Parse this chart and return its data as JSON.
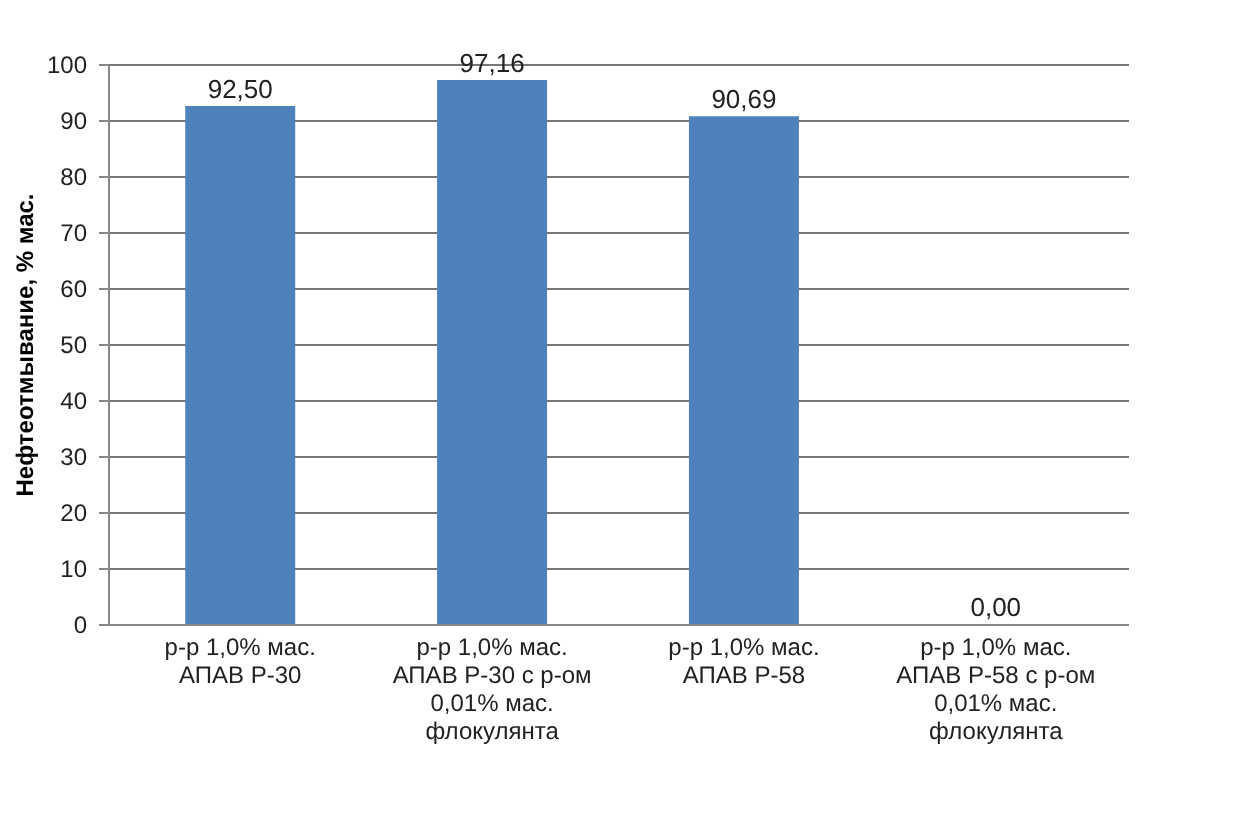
{
  "chart_data": {
    "type": "bar",
    "ylabel": "Нефтеотмывание, % мас.",
    "categories": [
      "р-р 1,0% мас. АПАВ Р-30",
      "р-р 1,0% мас. АПАВ Р-30 с р-ом 0,01% мас. флокулянта",
      "р-р 1,0% мас. АПАВ Р-58",
      "р-р 1,0% мас. АПАВ Р-58 с р-ом 0,01% мас. флокулянта"
    ],
    "values": [
      92.5,
      97.16,
      90.69,
      0.0
    ],
    "value_labels": [
      "92,50",
      "97,16",
      "90,69",
      "0,00"
    ],
    "color": "#4f81bd",
    "ylim": [
      0,
      100
    ],
    "yticks": [
      0,
      10,
      20,
      30,
      40,
      50,
      60,
      70,
      80,
      90,
      100
    ],
    "grid": "y"
  }
}
